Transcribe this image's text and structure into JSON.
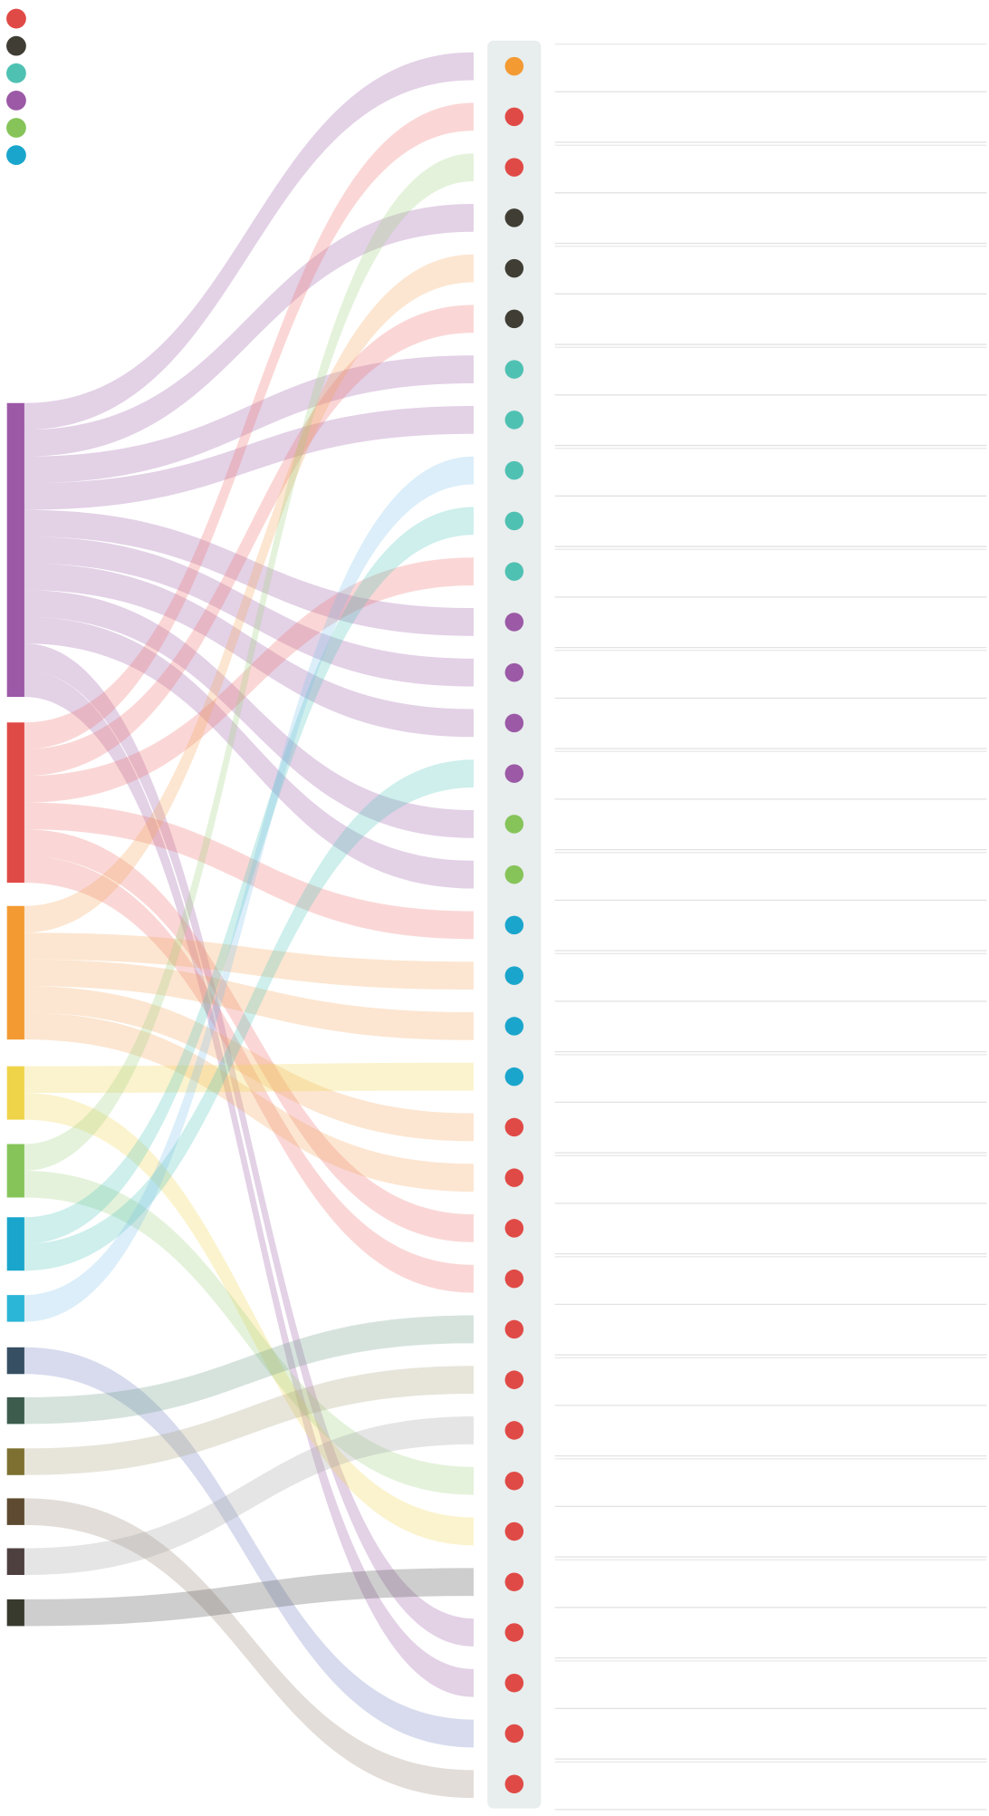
{
  "diagram": {
    "legend": [
      "#e04a46",
      "#3f3d34",
      "#4fc1b3",
      "#9b59a6",
      "#86c45a",
      "#1aa6cc"
    ],
    "sources": [
      {
        "color": "#9b59a6",
        "link_color": "#9b59a6"
      },
      {
        "color": "#e04a46",
        "link_color": "#ee6f6a"
      },
      {
        "color": "#f39a32",
        "link_color": "#f6a65a"
      },
      {
        "color": "#efd44a",
        "link_color": "#efd44a"
      },
      {
        "color": "#86c45a",
        "link_color": "#9fd07c"
      },
      {
        "color": "#1aa6cc",
        "link_color": "#4fc6bc"
      },
      {
        "color": "#2bb5d6",
        "link_color": "#7cc3e8"
      },
      {
        "color": "#364f63",
        "link_color": "#6f7fc0"
      },
      {
        "color": "#3d5c4e",
        "link_color": "#6d9b84"
      },
      {
        "color": "#7d7030",
        "link_color": "#a9a07a"
      },
      {
        "color": "#5e4a30",
        "link_color": "#978472"
      },
      {
        "color": "#4f4040",
        "link_color": "#a0a0a0"
      },
      {
        "color": "#383a2e",
        "link_color": "#4e4e4e"
      }
    ],
    "targets": [
      "#f39a32",
      "#e04a46",
      "#e04a46",
      "#3f3d34",
      "#3f3d34",
      "#3f3d34",
      "#4fc1b3",
      "#4fc1b3",
      "#4fc1b3",
      "#4fc1b3",
      "#4fc1b3",
      "#9b59a6",
      "#9b59a6",
      "#9b59a6",
      "#9b59a6",
      "#86c45a",
      "#86c45a",
      "#1aa6cc",
      "#1aa6cc",
      "#1aa6cc",
      "#1aa6cc",
      "#e04a46",
      "#e04a46",
      "#e04a46",
      "#e04a46",
      "#e04a46",
      "#e04a46",
      "#e04a46",
      "#e04a46",
      "#e04a46",
      "#e04a46",
      "#e04a46",
      "#e04a46",
      "#e04a46",
      "#e04a46"
    ],
    "links": [
      [
        0,
        0
      ],
      [
        0,
        3
      ],
      [
        0,
        6
      ],
      [
        0,
        7
      ],
      [
        0,
        11
      ],
      [
        0,
        12
      ],
      [
        0,
        13
      ],
      [
        0,
        15
      ],
      [
        0,
        16
      ],
      [
        0,
        31
      ],
      [
        0,
        32
      ],
      [
        1,
        1
      ],
      [
        1,
        5
      ],
      [
        1,
        10
      ],
      [
        1,
        17
      ],
      [
        1,
        23
      ],
      [
        1,
        24
      ],
      [
        2,
        4
      ],
      [
        2,
        18
      ],
      [
        2,
        19
      ],
      [
        2,
        21
      ],
      [
        2,
        22
      ],
      [
        3,
        20
      ],
      [
        3,
        29
      ],
      [
        4,
        2
      ],
      [
        4,
        28
      ],
      [
        5,
        9
      ],
      [
        5,
        14
      ],
      [
        6,
        8
      ],
      [
        7,
        33
      ],
      [
        8,
        25
      ],
      [
        9,
        26
      ],
      [
        10,
        34
      ],
      [
        11,
        27
      ],
      [
        12,
        30
      ]
    ]
  }
}
